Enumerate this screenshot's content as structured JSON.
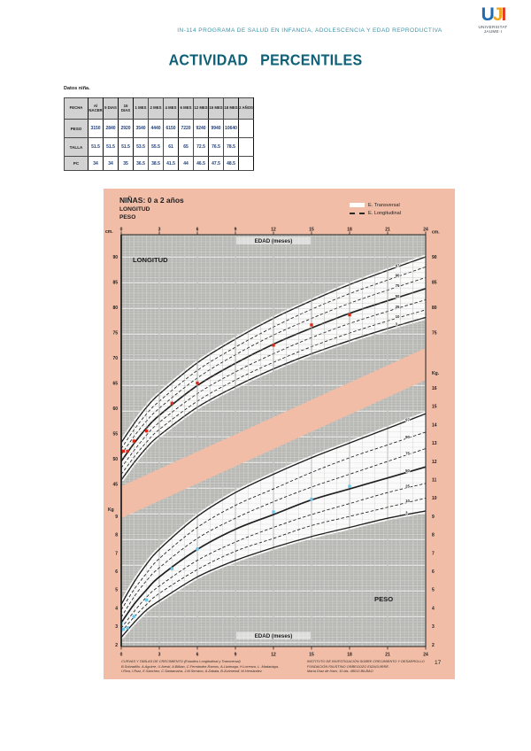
{
  "header": {
    "course": "IN-114 PROGRAMA DE SALUD EN INFANCIA, ADOLESCENCIA Y EDAD REPRODUCTIVA",
    "title": "ACTIVIDAD PERCENTILES",
    "logo": {
      "u": "U",
      "j": "J",
      "i": "I",
      "caption_line1": "UNIVERSITAT",
      "caption_line2": "JAUME·I"
    }
  },
  "table": {
    "caption": "Datos niña.",
    "corner": "FECHA",
    "columns": [
      "Al NACER",
      "5 DIAS",
      "15 DIAS",
      "1 MES",
      "2 MES",
      "4 MES",
      "6 MES",
      "12 MES",
      "15 MES",
      "18 MES",
      "2 AÑOS"
    ],
    "rows": [
      {
        "label": "PESO",
        "values": [
          "3150",
          "2840",
          "2920",
          "3540",
          "4440",
          "6150",
          "7220",
          "9240",
          "9940",
          "10640",
          ""
        ]
      },
      {
        "label": "TALLA",
        "values": [
          "51.5",
          "51.5",
          "51.5",
          "53.5",
          "55.5",
          "61",
          "65",
          "72.5",
          "76.5",
          "78.5",
          ""
        ]
      },
      {
        "label": "PC",
        "values": [
          "34",
          "34",
          "35",
          "36.5",
          "38.5",
          "41.5",
          "44",
          "46.5",
          "47.5",
          "48.5",
          ""
        ]
      }
    ]
  },
  "chart": {
    "title": "NIÑAS: 0 a 2 años",
    "subtitle1": "LONGITUD",
    "subtitle2": "PESO",
    "legend": {
      "transversal": "E. Transversal",
      "longitudinal": "E. Longitudinal"
    },
    "x_axis_label": "EDAD (meses)",
    "unit_cm": "cm.",
    "unit_kg_left": "Kg",
    "unit_kg_right": "Kg.",
    "inplot_length_label": "LONGITUD",
    "inplot_weight_label": "PESO",
    "page_number": "17",
    "footer_left_lines": [
      "CURVAS Y TABLAS DE CRECIMIENTO (Estudios Longitudinal y Transversal)",
      "B.Sobradillo, A.Aguirre, U.Aresti, A.Bilbao, C.Fernández-Ramos, A.Lizárraga, H.Lorenzo, L. Madariaga,",
      "I.Rica, I.Ruiz, E.Sánchez, C.Santamaría, J.M.Serrano, A.Zabala, B.Zurimendi, M.Hernández"
    ],
    "footer_right_lines": [
      "INSTITUTO DE INVESTIGACIÓN SOBRE CRECIMIENTO Y DESARROLLO",
      "FUNDACIÓN FAUSTINO ORBEGOZO EIZAGUIRRE.",
      "María Díaz de Haro, 10 bis. 48013 BILBAO"
    ],
    "colors": {
      "panel_pink": "#f2bda7",
      "plot_gray": "#b6b6b2",
      "curve": "#1f1f1f",
      "length_point": "#e02818",
      "weight_point": "#6ec6ea",
      "accent_teal": "#3d93a8",
      "title_teal": "#0d6077"
    }
  },
  "chart_data": {
    "type": "line",
    "title": "NIÑAS: 0 a 2 años",
    "xlabel": "EDAD (meses)",
    "x_ticks": [
      0,
      3,
      6,
      9,
      12,
      15,
      18,
      21,
      24
    ],
    "x_range": [
      0,
      24
    ],
    "months": [
      0,
      1,
      2,
      3,
      6,
      9,
      12,
      15,
      18,
      21,
      24
    ],
    "length": {
      "unit": "cm",
      "axis_range": [
        45,
        94
      ],
      "left_axis_ticks": [
        90,
        85,
        80,
        75,
        70,
        65,
        60,
        55,
        50,
        45
      ],
      "right_axis_ticks": [
        90,
        85,
        80,
        75
      ],
      "percentiles": {
        "97": [
          53.2,
          56.9,
          60.2,
          62.8,
          69.0,
          73.7,
          77.8,
          81.3,
          84.5,
          87.3,
          90.0
        ],
        "90": [
          52.0,
          55.7,
          58.9,
          61.4,
          67.5,
          72.1,
          76.1,
          79.6,
          82.7,
          85.4,
          88.0
        ],
        "75": [
          50.8,
          54.4,
          57.5,
          60.0,
          66.0,
          70.6,
          74.5,
          77.8,
          80.8,
          83.4,
          85.9
        ],
        "50": [
          49.5,
          53.0,
          56.1,
          58.6,
          64.5,
          68.9,
          72.7,
          75.9,
          78.8,
          81.3,
          83.7
        ],
        "25": [
          48.2,
          51.6,
          54.7,
          57.2,
          62.9,
          67.2,
          70.8,
          74.0,
          76.8,
          79.2,
          81.5
        ],
        "10": [
          46.9,
          50.3,
          53.3,
          55.8,
          61.4,
          65.6,
          69.1,
          72.2,
          74.9,
          77.3,
          79.5
        ],
        "3": [
          45.8,
          49.2,
          52.2,
          54.6,
          60.2,
          64.3,
          67.8,
          70.8,
          73.4,
          75.8,
          78.0
        ]
      },
      "patient_points": [
        [
          0,
          51.5
        ],
        [
          0.17,
          51.5
        ],
        [
          0.5,
          51.5
        ],
        [
          1,
          53.5
        ],
        [
          2,
          55.5
        ],
        [
          4,
          61
        ],
        [
          6,
          65
        ],
        [
          12,
          72.5
        ],
        [
          15,
          76.5
        ],
        [
          18,
          78.5
        ]
      ]
    },
    "weight": {
      "unit": "kg",
      "axis_range": [
        2,
        16
      ],
      "left_axis_ticks": [
        9,
        8,
        7,
        6,
        5,
        4,
        3,
        2
      ],
      "right_axis_ticks": [
        16,
        15,
        14,
        13,
        12,
        11,
        10,
        9,
        8,
        7,
        6,
        5,
        4,
        3,
        2
      ],
      "percentiles": {
        "97": [
          4.2,
          5.4,
          6.4,
          7.2,
          9.0,
          10.3,
          11.3,
          12.2,
          13.0,
          13.8,
          14.6
        ],
        "90": [
          3.9,
          5.0,
          5.9,
          6.7,
          8.4,
          9.6,
          10.5,
          11.4,
          12.2,
          12.9,
          13.6
        ],
        "75": [
          3.5,
          4.6,
          5.5,
          6.2,
          7.8,
          8.9,
          9.8,
          10.6,
          11.3,
          12.0,
          12.7
        ],
        "50": [
          3.2,
          4.2,
          5.0,
          5.7,
          7.2,
          8.3,
          9.1,
          9.9,
          10.5,
          11.1,
          11.7
        ],
        "25": [
          2.9,
          3.8,
          4.6,
          5.2,
          6.6,
          7.6,
          8.4,
          9.1,
          9.7,
          10.3,
          10.8
        ],
        "10": [
          2.7,
          3.5,
          4.2,
          4.8,
          6.1,
          7.1,
          7.8,
          8.5,
          9.0,
          9.5,
          10.0
        ],
        "3": [
          2.4,
          3.2,
          3.9,
          4.4,
          5.7,
          6.6,
          7.3,
          7.9,
          8.4,
          8.9,
          9.3
        ]
      },
      "patient_points": [
        [
          0,
          3.15
        ],
        [
          0.17,
          2.84
        ],
        [
          0.5,
          2.92
        ],
        [
          1,
          3.54
        ],
        [
          2,
          4.44
        ],
        [
          4,
          6.15
        ],
        [
          6,
          7.22
        ],
        [
          12,
          9.24
        ],
        [
          15,
          9.94
        ],
        [
          18,
          10.64
        ]
      ]
    }
  }
}
